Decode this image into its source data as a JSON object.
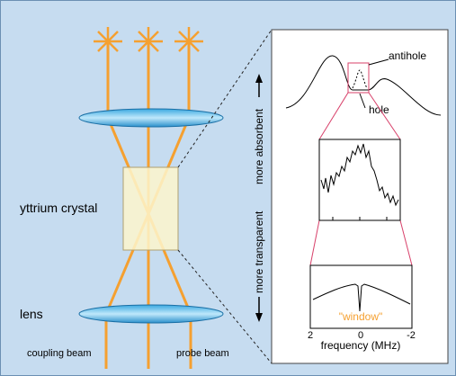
{
  "left": {
    "crystal_label": "yttrium crystal",
    "lens_label": "lens",
    "coupling_beam": "coupling beam",
    "probe_beam": "probe beam"
  },
  "axis_side": {
    "absorbent": "more absorbent",
    "transparent": "more transparent"
  },
  "panel": {
    "antihole": "antihole",
    "hole": "hole",
    "window": "\"window\"",
    "x_ticks": [
      "2",
      "0",
      "-2"
    ],
    "x_label": "frequency (MHz)"
  }
}
